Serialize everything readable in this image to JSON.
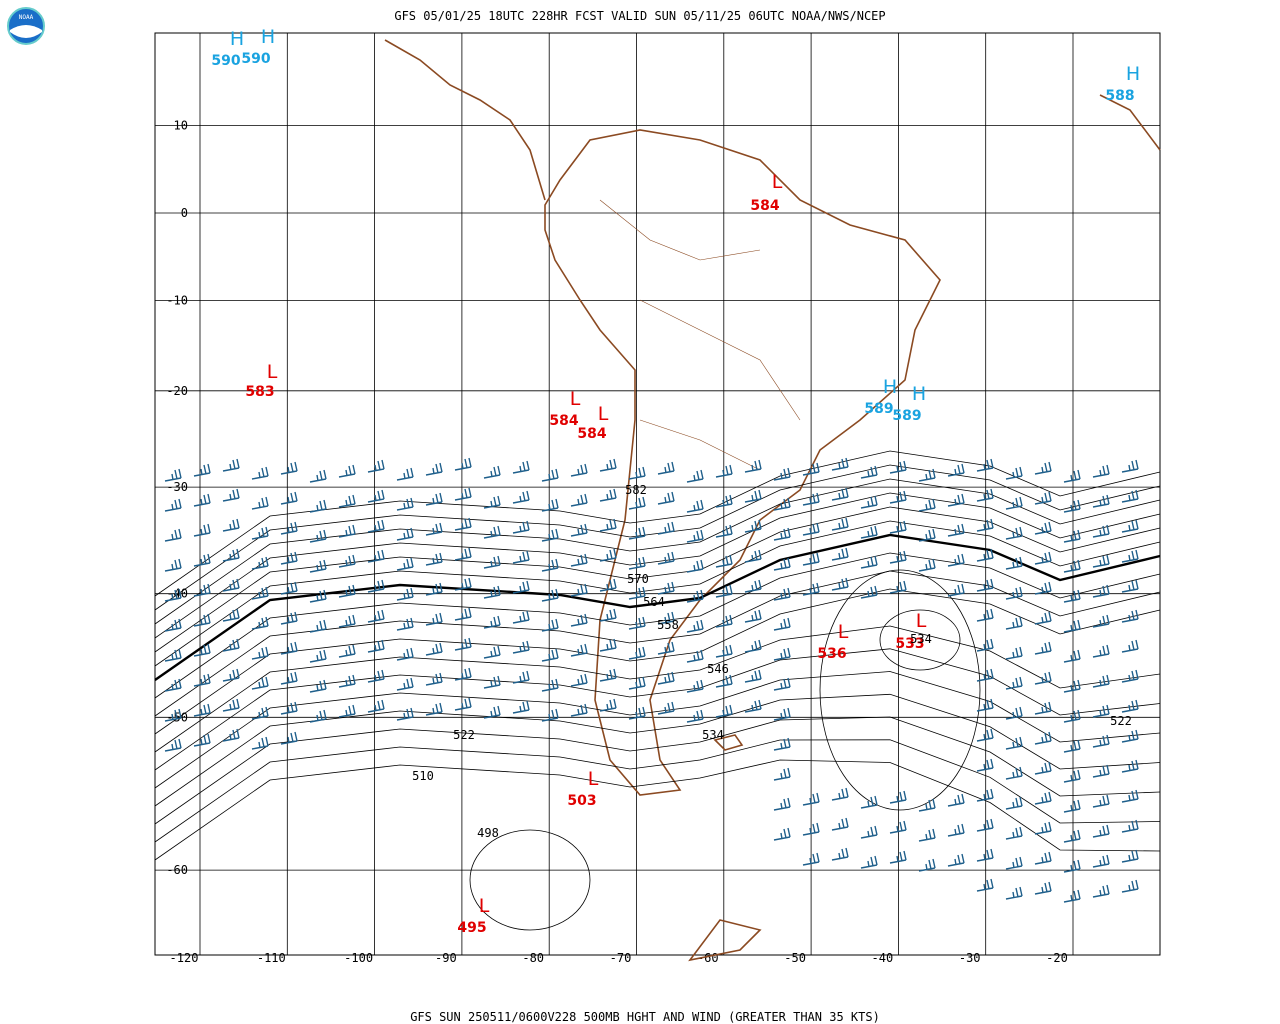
{
  "header": {
    "title": "GFS 05/01/25 18UTC 228HR FCST VALID SUN 05/11/25 06UTC NOAA/NWS/NCEP",
    "logo": "NOAA"
  },
  "footer": {
    "caption": "GFS SUN 250511/0600V228 500MB HGHT AND WIND (GREATER THAN 35 KTS)"
  },
  "lat_labels": [
    10,
    0,
    -10,
    -20,
    -30,
    -40,
    -50,
    -60
  ],
  "lon_labels": [
    -120,
    -110,
    -100,
    -90,
    -80,
    -70,
    -60,
    -50,
    -40,
    -30,
    -20
  ],
  "systems": [
    {
      "letter": "H",
      "value": "590"
    },
    {
      "letter": "H",
      "value": "590"
    },
    {
      "letter": "H",
      "value": "588"
    },
    {
      "letter": "L",
      "value": "584"
    },
    {
      "letter": "L",
      "value": "583"
    },
    {
      "letter": "L",
      "value": "584"
    },
    {
      "letter": "L",
      "value": "584"
    },
    {
      "letter": "H",
      "value": "589"
    },
    {
      "letter": "H",
      "value": "589"
    },
    {
      "letter": "L",
      "value": "536"
    },
    {
      "letter": "L",
      "value": "533"
    },
    {
      "letter": "L",
      "value": "503"
    },
    {
      "letter": "L",
      "value": "495"
    }
  ],
  "contour_labels": [
    "582",
    "570",
    "564",
    "558",
    "546",
    "534",
    "522",
    "534",
    "510",
    "498",
    "522"
  ]
}
